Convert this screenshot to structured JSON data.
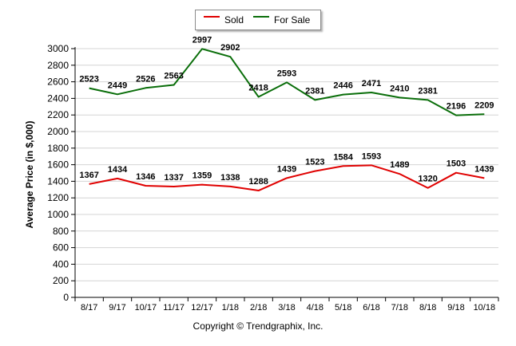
{
  "chart_data": {
    "type": "line",
    "title": "",
    "xlabel": "",
    "ylabel": "Average Price (in $,000)",
    "ylim": [
      0,
      3000
    ],
    "ytick_step": 200,
    "grid": true,
    "legend_position": "top-center",
    "categories": [
      "8/17",
      "9/17",
      "10/17",
      "11/17",
      "12/17",
      "1/18",
      "2/18",
      "3/18",
      "4/18",
      "5/18",
      "6/18",
      "7/18",
      "8/18",
      "9/18",
      "10/18"
    ],
    "series": [
      {
        "name": "Sold",
        "color": "#e00000",
        "values": [
          1367,
          1434,
          1346,
          1337,
          1359,
          1338,
          1288,
          1439,
          1523,
          1584,
          1593,
          1489,
          1320,
          1503,
          1439
        ]
      },
      {
        "name": "For Sale",
        "color": "#0a6e0a",
        "values": [
          2523,
          2449,
          2526,
          2563,
          2997,
          2902,
          2418,
          2593,
          2381,
          2446,
          2471,
          2410,
          2381,
          2196,
          2209
        ]
      }
    ],
    "footer": "Copyright © Trendgraphix, Inc."
  }
}
